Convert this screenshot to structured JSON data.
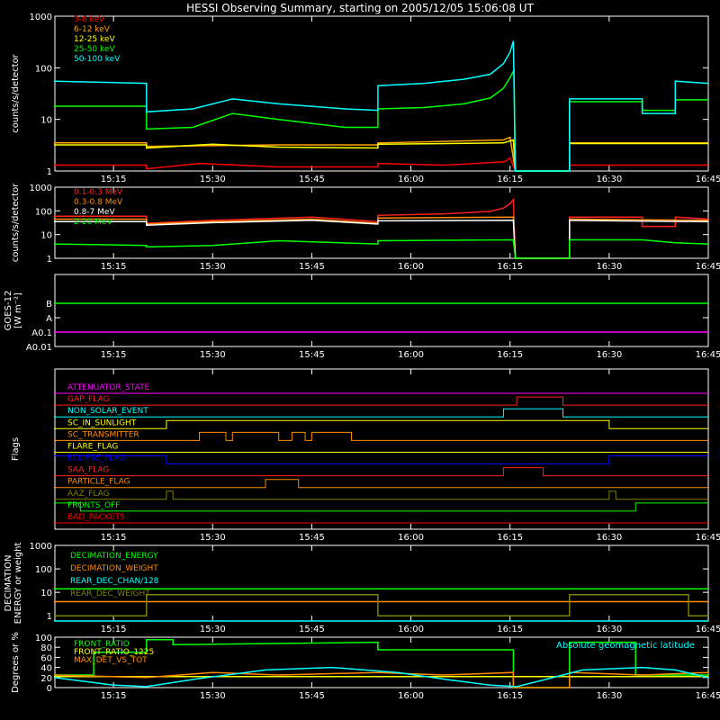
{
  "title": "HESSI Observing Summary, starting on 2005/12/05 15:06:08 UT",
  "time_axis": {
    "start_min": 6.13,
    "end_min": 105,
    "ticks": [
      "15:15",
      "15:30",
      "15:45",
      "16:00",
      "16:15",
      "16:30",
      "16:45"
    ],
    "tick_minutes": [
      15,
      30,
      45,
      60,
      75,
      90,
      105
    ]
  },
  "chart_data": [
    {
      "id": "rates",
      "type": "line",
      "ylabel": "counts/s/detector",
      "scale": "log",
      "ylim": [
        1,
        1000
      ],
      "yticks": [
        "1",
        "10",
        "100",
        "1000"
      ],
      "ytick_values": [
        1,
        10,
        100,
        1000
      ],
      "series": [
        {
          "name": "3-6 keV",
          "color": "#ff0000",
          "x": [
            6,
            20,
            20,
            28,
            40,
            55,
            55,
            65,
            74,
            74.5,
            75,
            75.8,
            84,
            84,
            95,
            95,
            105
          ],
          "y": [
            1.3,
            1.3,
            1.1,
            1.4,
            1.2,
            1.2,
            1.4,
            1.3,
            1.5,
            1.6,
            1.8,
            0,
            0,
            1.3,
            1.3,
            1.3,
            1.3
          ]
        },
        {
          "name": "6-12 keV",
          "color": "#ffa500",
          "x": [
            6,
            20,
            20,
            40,
            55,
            55,
            74,
            75,
            75.8,
            84,
            84,
            105
          ],
          "y": [
            3.5,
            3.5,
            3.0,
            3.2,
            3.2,
            3.5,
            4.0,
            4.5,
            0,
            0,
            3.5,
            3.5
          ]
        },
        {
          "name": "12-25 keV",
          "color": "#ffff00",
          "x": [
            6,
            20,
            20,
            30,
            40,
            55,
            55,
            74,
            75.5,
            75.8,
            84,
            84,
            105
          ],
          "y": [
            3.2,
            3.2,
            2.8,
            3.3,
            2.9,
            2.8,
            3.3,
            3.5,
            4.0,
            0,
            0,
            3.4,
            3.4
          ]
        },
        {
          "name": "25-50 keV",
          "color": "#00ff00",
          "x": [
            6,
            20,
            20,
            27,
            33,
            40,
            50,
            55,
            55,
            62,
            68,
            72,
            74,
            75,
            75.6,
            75.8,
            84,
            84,
            95,
            95,
            100,
            100,
            105
          ],
          "y": [
            18,
            18,
            6.5,
            7,
            13,
            10,
            7,
            7,
            16,
            17,
            20,
            26,
            40,
            65,
            90,
            0,
            0,
            22,
            22,
            15,
            15,
            24,
            24
          ]
        },
        {
          "name": "50-100 keV",
          "color": "#00ffff",
          "x": [
            6,
            20,
            20,
            27,
            33,
            40,
            50,
            55,
            55,
            62,
            68,
            72,
            74,
            75,
            75.5,
            75.8,
            84,
            84,
            95,
            95,
            100,
            100,
            105
          ],
          "y": [
            55,
            50,
            14,
            16,
            25,
            20,
            16,
            15,
            45,
            50,
            60,
            75,
            120,
            200,
            330,
            0,
            0,
            25,
            25,
            13,
            13,
            55,
            50
          ]
        }
      ]
    },
    {
      "id": "nuclear",
      "type": "line",
      "ylabel": "counts/s/detector",
      "scale": "log",
      "ylim": [
        1,
        1000
      ],
      "yticks": [
        "1",
        "10",
        "100",
        "1000"
      ],
      "ytick_values": [
        1,
        10,
        100,
        1000
      ],
      "series": [
        {
          "name": "0.1-0.3 MeV",
          "color": "#ff2020",
          "x": [
            6,
            20,
            20,
            30,
            45,
            55,
            55,
            65,
            72,
            74,
            75,
            75.5,
            75.8,
            84,
            84,
            95,
            95,
            100,
            100,
            105
          ],
          "y": [
            60,
            60,
            30,
            40,
            55,
            35,
            65,
            75,
            95,
            130,
            200,
            300,
            0,
            0,
            55,
            55,
            22,
            22,
            55,
            45
          ]
        },
        {
          "name": "0.3-0.8 MeV",
          "color": "#ff8c00",
          "x": [
            6,
            20,
            20,
            30,
            45,
            55,
            55,
            75.5,
            75.8,
            84,
            84,
            105
          ],
          "y": [
            45,
            45,
            28,
            35,
            45,
            30,
            50,
            55,
            0,
            0,
            45,
            40
          ]
        },
        {
          "name": "0.8-7 MeV",
          "color": "#ffffff",
          "x": [
            6,
            20,
            20,
            30,
            45,
            55,
            55,
            75.5,
            75.8,
            84,
            84,
            105
          ],
          "y": [
            35,
            35,
            25,
            32,
            40,
            28,
            38,
            40,
            0,
            0,
            40,
            35
          ]
        },
        {
          "name": "2-20 MeV",
          "color": "#00ff00",
          "x": [
            6,
            20,
            20,
            30,
            40,
            55,
            55,
            75.5,
            75.8,
            84,
            84,
            95,
            100,
            105
          ],
          "y": [
            4,
            3.5,
            3.0,
            3.5,
            5.5,
            4,
            5.5,
            6,
            0,
            0,
            6,
            6,
            4.5,
            4
          ]
        }
      ]
    },
    {
      "id": "goes",
      "type": "line",
      "ylabel": "GOES-12",
      "ylabel2": "[W m⁻²]",
      "scale": "log",
      "ylim": [
        0.01,
        1000
      ],
      "yticks": [
        "A0.01",
        "A0.1",
        "A",
        "B"
      ],
      "ytick_values": [
        0.01,
        0.1,
        1,
        10
      ],
      "series": [
        {
          "name": "B-level",
          "color": "#00ff00",
          "x": [
            6,
            105
          ],
          "y": [
            10,
            10
          ]
        },
        {
          "name": "A0.1-level",
          "color": "#ff00ff",
          "x": [
            6,
            105
          ],
          "y": [
            0.1,
            0.1
          ]
        }
      ]
    },
    {
      "id": "flags",
      "type": "line",
      "ylabel": "Flags",
      "series": [
        {
          "name": "ATTENUATOR_STATE",
          "color": "#ff00ff",
          "x": [
            6,
            105
          ],
          "y": [
            0,
            0
          ]
        },
        {
          "name": "GAP_FLAG",
          "color": "#ff2020",
          "x": [
            6,
            76,
            76,
            83,
            83,
            105
          ],
          "y": [
            0,
            0,
            1,
            1,
            0,
            0
          ]
        },
        {
          "name": "NON_SOLAR_EVENT",
          "color": "#00ffff",
          "x": [
            6,
            74,
            74,
            83,
            83,
            105
          ],
          "y": [
            0,
            0,
            1,
            1,
            0,
            0
          ]
        },
        {
          "name": "SC_IN_SUNLIGHT",
          "color": "#ffff00",
          "x": [
            6,
            23,
            23,
            90,
            90,
            105
          ],
          "y": [
            0,
            0,
            1,
            1,
            0,
            0
          ]
        },
        {
          "name": "SC_TRANSMITTER",
          "color": "#ff8c00",
          "x": [
            6,
            28,
            28,
            32,
            32,
            33,
            33,
            40,
            40,
            42,
            42,
            44,
            44,
            45,
            45,
            51,
            51,
            105
          ],
          "y": [
            0,
            0,
            1,
            1,
            0,
            0,
            1,
            1,
            0,
            0,
            1,
            1,
            0,
            0,
            1,
            1,
            0,
            0
          ]
        },
        {
          "name": "FLARE_FLAG",
          "color": "#ffff00",
          "x": [
            6,
            105
          ],
          "y": [
            0,
            0
          ]
        },
        {
          "name": "ECLIPSE_FLAG",
          "color": "#0000ff",
          "x": [
            6,
            23,
            23,
            90,
            90,
            105
          ],
          "y": [
            1,
            1,
            0,
            0,
            1,
            1
          ]
        },
        {
          "name": "SAA_FLAG",
          "color": "#ff2020",
          "x": [
            6,
            74,
            74,
            80,
            80,
            105
          ],
          "y": [
            0,
            0,
            1,
            1,
            0,
            0
          ]
        },
        {
          "name": "PARTICLE_FLAG",
          "color": "#ff8c00",
          "x": [
            6,
            38,
            38,
            43,
            43,
            105
          ],
          "y": [
            0,
            0,
            1,
            1,
            0,
            0
          ]
        },
        {
          "name": "AAZ_FLAG",
          "color": "#808000",
          "x": [
            6,
            23,
            23,
            24,
            24,
            90,
            90,
            91,
            91,
            105
          ],
          "y": [
            0,
            0,
            1,
            1,
            0,
            0,
            1,
            1,
            0,
            0
          ]
        },
        {
          "name": "FRONTS_OFF",
          "color": "#00ff00",
          "x": [
            6,
            10,
            10,
            94,
            94,
            105
          ],
          "y": [
            1,
            1,
            0,
            0,
            1,
            1
          ]
        },
        {
          "name": "BAD_PACKETS",
          "color": "#ff0000",
          "x": [
            6,
            105
          ],
          "y": [
            0,
            0
          ]
        }
      ]
    },
    {
      "id": "decimation",
      "type": "line",
      "ylabel": "DECIMATION",
      "ylabel2": "ENERGY or weight",
      "scale": "log",
      "ylim": [
        0.6,
        1000
      ],
      "yticks": [
        "1",
        "10",
        "100",
        "1000"
      ],
      "ytick_values": [
        1,
        10,
        100,
        1000
      ],
      "series": [
        {
          "name": "DECIMATION_ENERGY",
          "color": "#00ff00",
          "x": [
            6,
            105
          ],
          "y": [
            14,
            14
          ]
        },
        {
          "name": "DECIMATION_WEIGHT",
          "color": "#ff8c00",
          "x": [
            6,
            105
          ],
          "y": [
            4,
            4
          ]
        },
        {
          "name": "REAR_DEC_CHAN/128",
          "color": "#00ffff",
          "x": [
            6,
            105
          ],
          "y": [
            0.6,
            0.6
          ]
        },
        {
          "name": "REAR_DEC_WEIGHT",
          "color": "#808000",
          "x": [
            6,
            20,
            20,
            55,
            55,
            84,
            84,
            102,
            102,
            105
          ],
          "y": [
            1,
            1,
            8,
            8,
            1,
            1,
            8,
            8,
            1,
            1
          ]
        }
      ]
    },
    {
      "id": "ratios",
      "type": "line",
      "ylabel": "Degrees or %",
      "ylim": [
        0,
        100
      ],
      "yticks": [
        "0",
        "20",
        "40",
        "60",
        "80",
        "100"
      ],
      "ytick_values": [
        0,
        20,
        40,
        60,
        80,
        100
      ],
      "annotation": "Absolute geomagnetic latitude",
      "series": [
        {
          "name": "FRONT_RATIO",
          "color": "#00ff00",
          "x": [
            6,
            12,
            12,
            20,
            20,
            24,
            24,
            55,
            55,
            75.5,
            75.5,
            84,
            84,
            94,
            94,
            105
          ],
          "y": [
            25,
            25,
            70,
            70,
            95,
            95,
            85,
            90,
            75,
            75,
            0,
            0,
            90,
            90,
            25,
            25
          ]
        },
        {
          "name": "FRONT_RATIO_1225",
          "color": "#ffff00",
          "x": [
            6,
            105
          ],
          "y": [
            22,
            22
          ]
        },
        {
          "name": "MAX_DET_VS_TOT",
          "color": "#ff8c00",
          "x": [
            6,
            20,
            30,
            40,
            55,
            65,
            75.5,
            75.5,
            84,
            84,
            95,
            105
          ],
          "y": [
            25,
            20,
            30,
            25,
            30,
            25,
            30,
            0,
            0,
            30,
            25,
            30
          ]
        },
        {
          "name": "Absolute geomagnetic latitude",
          "color": "#00ffff",
          "x": [
            6,
            15,
            20,
            28,
            38,
            48,
            58,
            66,
            72,
            76,
            80,
            86,
            95,
            100,
            105
          ],
          "y": [
            20,
            5,
            2,
            18,
            35,
            40,
            30,
            15,
            5,
            2,
            15,
            35,
            40,
            35,
            20
          ]
        }
      ]
    }
  ]
}
